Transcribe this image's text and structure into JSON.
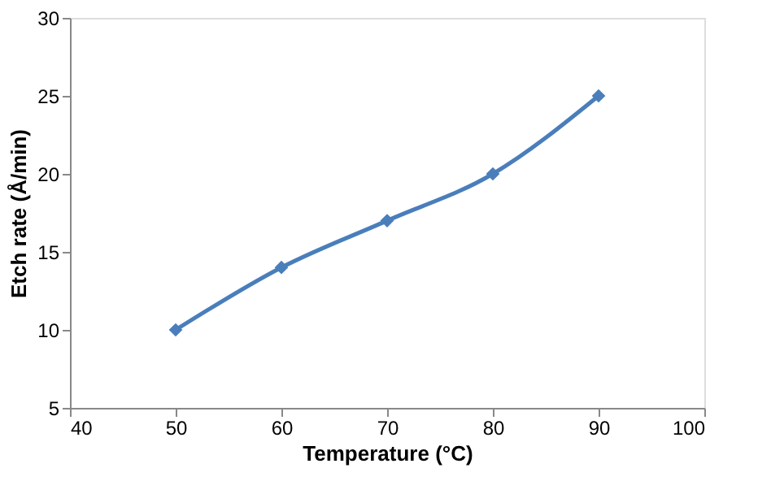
{
  "chart_data": {
    "type": "line",
    "xlabel": "Temperature (°C)",
    "ylabel": "Etch rate (Å/min)",
    "x": [
      50,
      60,
      70,
      80,
      90
    ],
    "series": [
      {
        "color": "#4a7ebb",
        "values": [
          10,
          14,
          17,
          20,
          25
        ]
      }
    ],
    "xlim": [
      40,
      100
    ],
    "xticks": [
      40,
      50,
      60,
      70,
      80,
      90,
      100
    ],
    "ylim": [
      5,
      30
    ],
    "yticks": [
      5,
      10,
      15,
      20,
      25,
      30
    ],
    "grid": false,
    "marker": "diamond",
    "line_style": "solid"
  }
}
